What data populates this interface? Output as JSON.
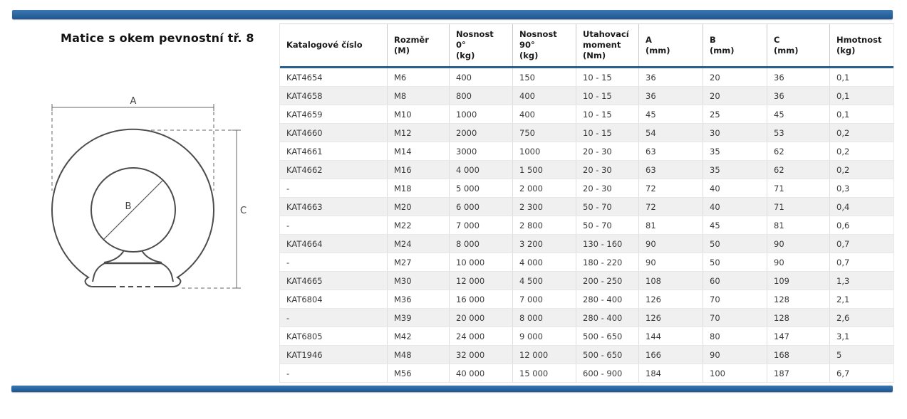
{
  "title": "Matice s okem pevnostní tř. 8",
  "diagram": {
    "dim_a": "A",
    "dim_b": "B",
    "dim_c": "C"
  },
  "table": {
    "columns": [
      "Katalogové číslo",
      "Rozměr\n(M)",
      "Nosnost\n0°\n(kg)",
      "Nosnost\n90°\n(kg)",
      "Utahovací\nmoment\n(Nm)",
      "A\n(mm)",
      "B\n(mm)",
      "C\n(mm)",
      "Hmotnost\n(kg)"
    ],
    "rows": [
      [
        "KAT4654",
        "M6",
        "400",
        "150",
        "10 - 15",
        "36",
        "20",
        "36",
        "0,1"
      ],
      [
        "KAT4658",
        "M8",
        "800",
        "400",
        "10 - 15",
        "36",
        "20",
        "36",
        "0,1"
      ],
      [
        "KAT4659",
        "M10",
        "1000",
        "400",
        "10 - 15",
        "45",
        "25",
        "45",
        "0,1"
      ],
      [
        "KAT4660",
        "M12",
        "2000",
        "750",
        "10 - 15",
        "54",
        "30",
        "53",
        "0,2"
      ],
      [
        "KAT4661",
        "M14",
        "3000",
        "1000",
        "20 - 30",
        "63",
        "35",
        "62",
        "0,2"
      ],
      [
        "KAT4662",
        "M16",
        "4 000",
        "1 500",
        "20 - 30",
        "63",
        "35",
        "62",
        "0,2"
      ],
      [
        "-",
        "M18",
        "5 000",
        "2 000",
        "20 - 30",
        "72",
        "40",
        "71",
        "0,3"
      ],
      [
        "KAT4663",
        "M20",
        "6 000",
        "2 300",
        "50 - 70",
        "72",
        "40",
        "71",
        "0,4"
      ],
      [
        "-",
        "M22",
        "7 000",
        "2 800",
        "50 - 70",
        "81",
        "45",
        "81",
        "0,6"
      ],
      [
        "KAT4664",
        "M24",
        "8 000",
        "3 200",
        "130 - 160",
        "90",
        "50",
        "90",
        "0,7"
      ],
      [
        "-",
        "M27",
        "10 000",
        "4 000",
        "180 - 220",
        "90",
        "50",
        "90",
        "0,7"
      ],
      [
        "KAT4665",
        "M30",
        "12 000",
        "4 500",
        "200 - 250",
        "108",
        "60",
        "109",
        "1,3"
      ],
      [
        "KAT6804",
        "M36",
        "16 000",
        "7 000",
        "280 - 400",
        "126",
        "70",
        "128",
        "2,1"
      ],
      [
        "-",
        "M39",
        "20 000",
        "8 000",
        "280 - 400",
        "126",
        "70",
        "128",
        "2,6"
      ],
      [
        "KAT6805",
        "M42",
        "24 000",
        "9 000",
        "500 - 650",
        "144",
        "80",
        "147",
        "3,1"
      ],
      [
        "KAT1946",
        "M48",
        "32 000",
        "12 000",
        "500 - 650",
        "166",
        "90",
        "168",
        "5"
      ],
      [
        "-",
        "M56",
        "40 000",
        "15 000",
        "600 - 900",
        "184",
        "100",
        "187",
        "6,7"
      ]
    ]
  },
  "colors": {
    "accent_blue": "#2b65a3",
    "header_rule": "#29618e",
    "row_stripe": "#f0f0f0"
  }
}
